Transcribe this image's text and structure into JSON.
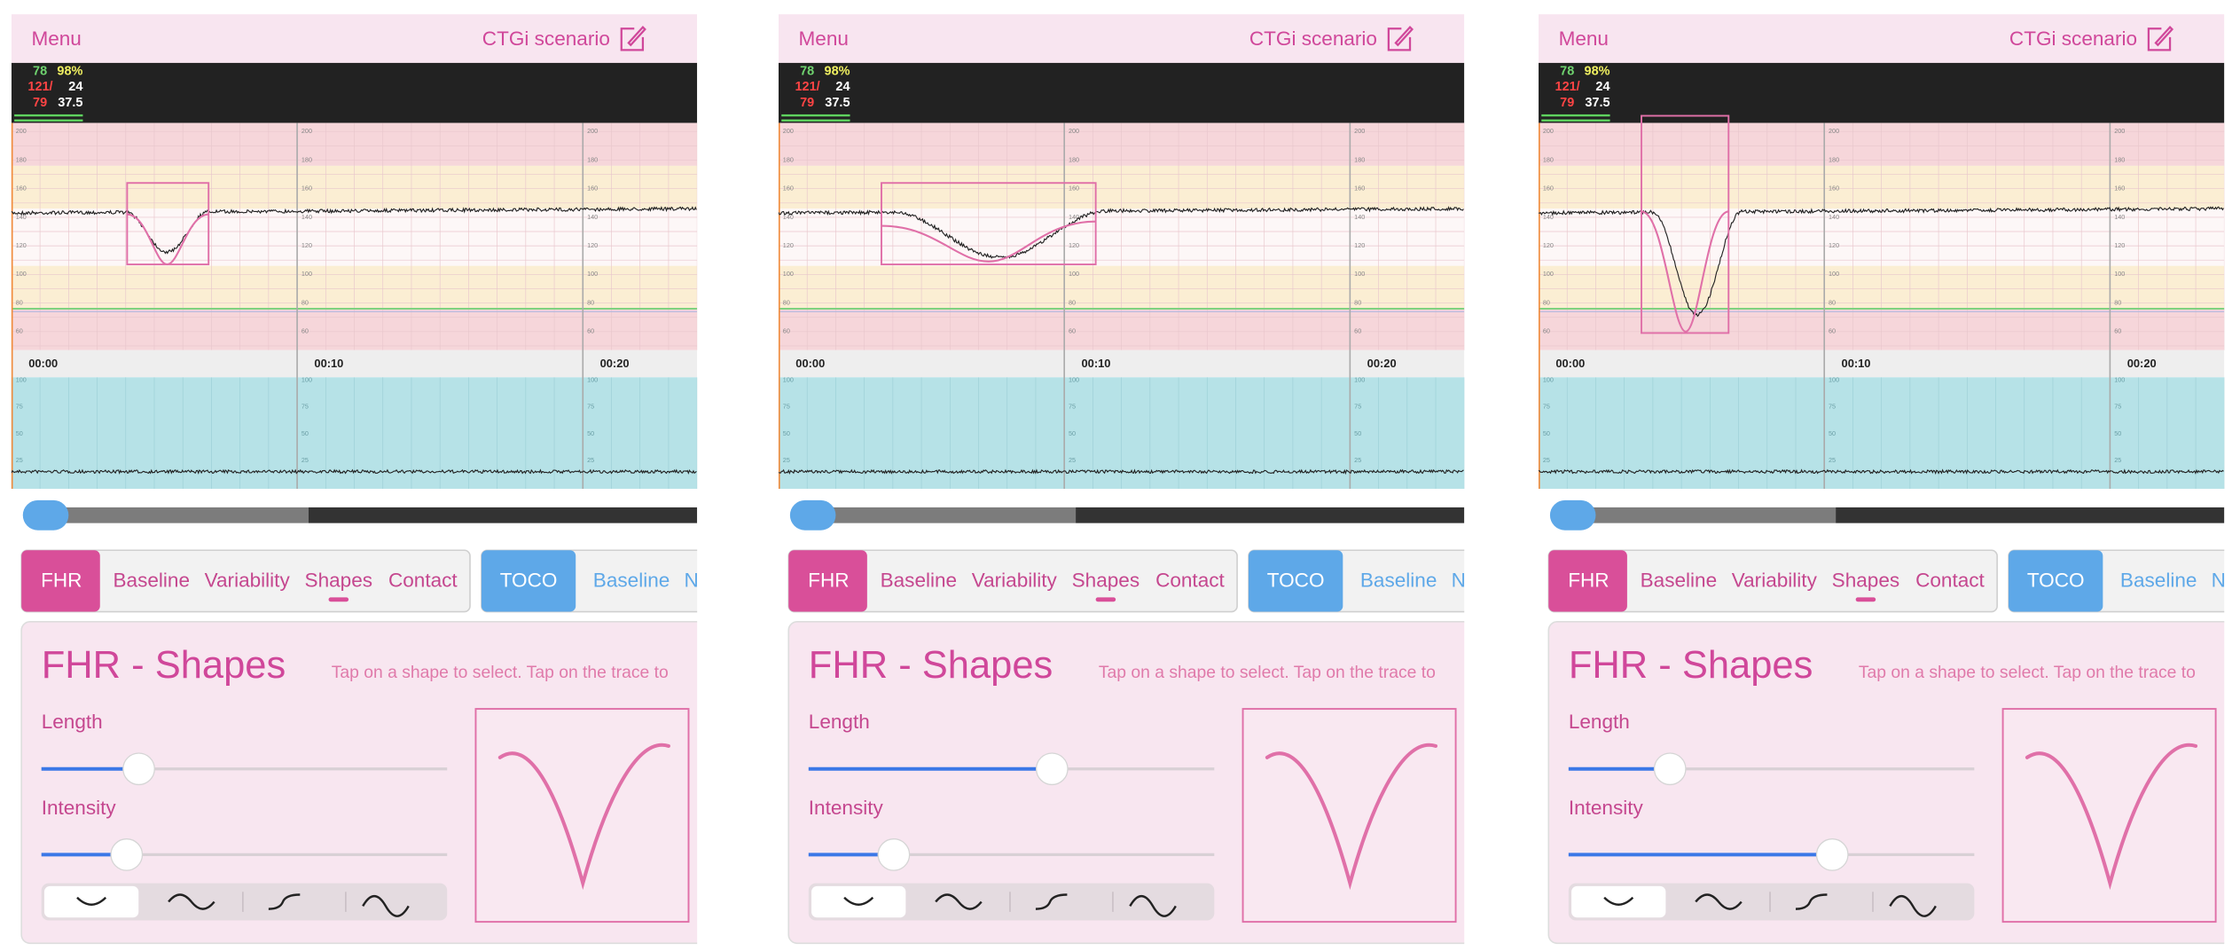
{
  "panels": [
    {
      "menu": "Menu",
      "scenario": "CTGi scenario",
      "vitals": {
        "hr": 78,
        "spo2": "98%",
        "bp_sys": "121/",
        "resp": 24,
        "bp_dia": 79,
        "temp": 37.5
      },
      "fhr_ticks": [
        200,
        180,
        160,
        140,
        120,
        100,
        80,
        60
      ],
      "toco_ticks": [
        100,
        75,
        50,
        25
      ],
      "times": [
        "00:00",
        "00:10",
        "00:20"
      ],
      "fhr_tabs": [
        "FHR",
        "Baseline",
        "Variability",
        "Shapes",
        "Contact"
      ],
      "toco_tabs": [
        "TOCO",
        "Baseline",
        "N"
      ],
      "heading": "FHR - Shapes",
      "hint": "Tap on a shape to select. Tap on the trace to",
      "length_label": "Length",
      "length": 0.24,
      "intensity_label": "Intensity",
      "intensity": 0.21
    },
    {
      "menu": "Menu",
      "scenario": "CTGi scenario",
      "vitals": {
        "hr": 78,
        "spo2": "98%",
        "bp_sys": "121/",
        "resp": 24,
        "bp_dia": 79,
        "temp": 37.5
      },
      "fhr_ticks": [
        200,
        180,
        160,
        140,
        120,
        100,
        80,
        60
      ],
      "toco_ticks": [
        100,
        75,
        50,
        25
      ],
      "times": [
        "00:00",
        "00:10",
        "00:20"
      ],
      "fhr_tabs": [
        "FHR",
        "Baseline",
        "Variability",
        "Shapes",
        "Contact"
      ],
      "toco_tabs": [
        "TOCO",
        "Baseline",
        "N"
      ],
      "heading": "FHR - Shapes",
      "hint": "Tap on a shape to select. Tap on the trace to",
      "length_label": "Length",
      "length": 0.6,
      "intensity_label": "Intensity",
      "intensity": 0.21
    },
    {
      "menu": "Menu",
      "scenario": "CTGi scenario",
      "vitals": {
        "hr": 78,
        "spo2": "98%",
        "bp_sys": "121/",
        "resp": 24,
        "bp_dia": 79,
        "temp": 37.5
      },
      "fhr_ticks": [
        200,
        180,
        160,
        140,
        120,
        100,
        80,
        60
      ],
      "toco_ticks": [
        100,
        75,
        50,
        25
      ],
      "times": [
        "00:00",
        "00:10",
        "00:20"
      ],
      "fhr_tabs": [
        "FHR",
        "Baseline",
        "Variability",
        "Shapes",
        "Contact"
      ],
      "toco_tabs": [
        "TOCO",
        "Baseline",
        "N"
      ],
      "heading": "FHR - Shapes",
      "hint": "Tap on a shape to select. Tap on the trace to",
      "length_label": "Length",
      "length": 0.25,
      "intensity_label": "Intensity",
      "intensity": 0.65
    }
  ]
}
